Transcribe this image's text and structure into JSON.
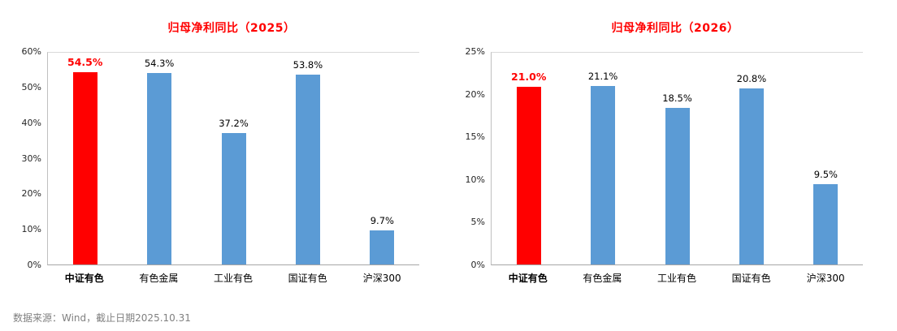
{
  "source_note": "数据来源：Wind，截止日期2025.10.31",
  "colors": {
    "highlight": "#ff0000",
    "bar": "#5b9bd5",
    "title": "#ff0000",
    "source_text": "#808080"
  },
  "chart_data": [
    {
      "type": "bar",
      "title": "归母净利同比（2025）",
      "categories": [
        "中证有色",
        "有色金属",
        "工业有色",
        "国证有色",
        "沪深300"
      ],
      "values": [
        54.5,
        54.3,
        37.2,
        53.8,
        9.7
      ],
      "labels": [
        "54.5%",
        "54.3%",
        "37.2%",
        "53.8%",
        "9.7%"
      ],
      "highlight_index": 0,
      "ylim": [
        0,
        60
      ],
      "yticks": [
        "0%",
        "10%",
        "20%",
        "30%",
        "40%",
        "50%",
        "60%"
      ],
      "grid": "top-line-only",
      "legend": "none"
    },
    {
      "type": "bar",
      "title": "归母净利同比（2026）",
      "categories": [
        "中证有色",
        "有色金属",
        "工业有色",
        "国证有色",
        "沪深300"
      ],
      "values": [
        21.0,
        21.1,
        18.5,
        20.8,
        9.5
      ],
      "labels": [
        "21.0%",
        "21.1%",
        "18.5%",
        "20.8%",
        "9.5%"
      ],
      "highlight_index": 0,
      "ylim": [
        0,
        25
      ],
      "yticks": [
        "0%",
        "5%",
        "10%",
        "15%",
        "20%",
        "25%"
      ],
      "grid": "top-line-only",
      "legend": "none"
    }
  ]
}
